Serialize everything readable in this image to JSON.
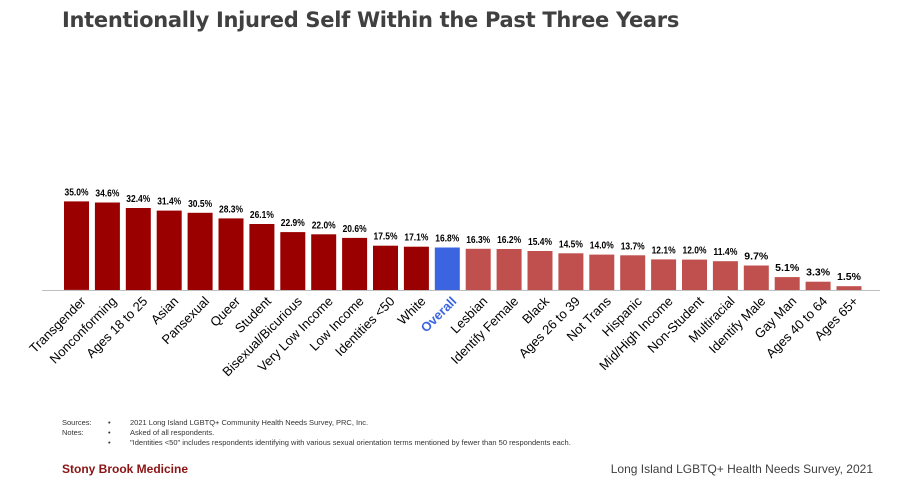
{
  "title": "Intentionally Injured Self Within the Past Three Years",
  "chart_data": {
    "type": "bar",
    "categories": [
      "Transgender",
      "Nonconforming",
      "Ages 18 to 25",
      "Asian",
      "Pansexual",
      "Queer",
      "Student",
      "Bisexual/Bicurious",
      "Very Low Income",
      "Low Income",
      "Identities <50",
      "White",
      "Overall",
      "Lesbian",
      "Identify Female",
      "Black",
      "Ages 26 to 39",
      "Not Trans",
      "Hispanic",
      "Mid/High Income",
      "Non-Student",
      "Multiracial",
      "Identify Male",
      "Gay Man",
      "Ages 40 to 64",
      "Ages 65+"
    ],
    "values": [
      35.0,
      34.6,
      32.4,
      31.4,
      30.5,
      28.3,
      26.1,
      22.9,
      22.0,
      20.6,
      17.5,
      17.1,
      16.8,
      16.3,
      16.2,
      15.4,
      14.5,
      14.0,
      13.7,
      12.1,
      12.0,
      11.4,
      9.7,
      5.1,
      3.3,
      1.5
    ],
    "data_labels": [
      "35.0%",
      "34.6%",
      "32.4%",
      "31.4%",
      "30.5%",
      "28.3%",
      "26.1%",
      "22.9%",
      "22.0%",
      "20.6%",
      "17.5%",
      "17.1%",
      "16.8%",
      "16.3%",
      "16.2%",
      "15.4%",
      "14.5%",
      "14.0%",
      "13.7%",
      "12.1%",
      "12.0%",
      "11.4%",
      "9.7%",
      "5.1%",
      "3.3%",
      "1.5%"
    ],
    "title": "Intentionally Injured Self Within the Past Three Years",
    "xlabel": "",
    "ylabel": "",
    "ylim": [
      0,
      100
    ],
    "grid": false,
    "highlight_category": "Overall",
    "colors": {
      "above": "#9b0000",
      "overall": "#3b64e0",
      "below": "#c0504d",
      "overall_label": "#3b64e0",
      "axis": "#bfbfbf"
    }
  },
  "notes": [
    {
      "label": "Sources:",
      "bullet": "•",
      "text": "2021 Long Island LGBTQ+ Community Health Needs Survey, PRC, Inc."
    },
    {
      "label": "Notes:",
      "bullet": "•",
      "text": "Asked of all respondents."
    },
    {
      "label": "",
      "bullet": "•",
      "text": "\"Identities <50\" includes respondents identifying with various sexual orientation terms mentioned by fewer than 50 respondents each."
    }
  ],
  "footer": {
    "brand": "Stony Brook Medicine",
    "survey": "Long Island LGBTQ+ Health Needs Survey, 2021"
  }
}
